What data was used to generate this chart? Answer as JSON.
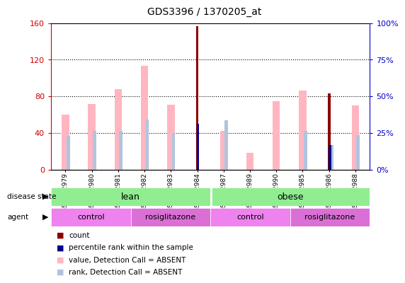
{
  "title": "GDS3396 / 1370205_at",
  "samples": [
    "GSM172979",
    "GSM172980",
    "GSM172981",
    "GSM172982",
    "GSM172983",
    "GSM172984",
    "GSM172987",
    "GSM172989",
    "GSM172990",
    "GSM172985",
    "GSM172986",
    "GSM172988"
  ],
  "count_values": [
    0,
    0,
    0,
    0,
    0,
    157,
    0,
    0,
    0,
    0,
    83,
    0
  ],
  "percentile_rank": [
    0,
    0,
    0,
    0,
    0,
    50,
    0,
    0,
    0,
    0,
    27,
    0
  ],
  "value_absent": [
    60,
    72,
    88,
    113,
    71,
    0,
    42,
    0,
    0,
    86,
    0,
    70
  ],
  "rank_absent": [
    37,
    42,
    42,
    55,
    40,
    0,
    33,
    0,
    0,
    42,
    27,
    38
  ],
  "low_pink": [
    0,
    0,
    0,
    0,
    0,
    0,
    0,
    18,
    75,
    0,
    0,
    0
  ],
  "low_blue": [
    0,
    0,
    0,
    0,
    0,
    0,
    21,
    0,
    0,
    0,
    0,
    0
  ],
  "ylim": [
    0,
    160
  ],
  "y2lim": [
    0,
    100
  ],
  "yticks": [
    0,
    40,
    80,
    120,
    160
  ],
  "y2ticks": [
    0,
    25,
    50,
    75,
    100
  ],
  "bar_width": 0.35,
  "count_color": "#8B0000",
  "percentile_color": "#00008B",
  "value_absent_color": "#FFB6C1",
  "rank_absent_color": "#B0C4DE",
  "left_axis_color": "#CC0000",
  "right_axis_color": "#0000CC",
  "lean_color": "#90EE90",
  "obese_color": "#90EE90",
  "control_color": "#EE82EE",
  "rosig_color": "#DA70D6",
  "legend_items": [
    {
      "label": "count",
      "color": "#8B0000"
    },
    {
      "label": "percentile rank within the sample",
      "color": "#00008B"
    },
    {
      "label": "value, Detection Call = ABSENT",
      "color": "#FFB6C1"
    },
    {
      "label": "rank, Detection Call = ABSENT",
      "color": "#B0C4DE"
    }
  ]
}
